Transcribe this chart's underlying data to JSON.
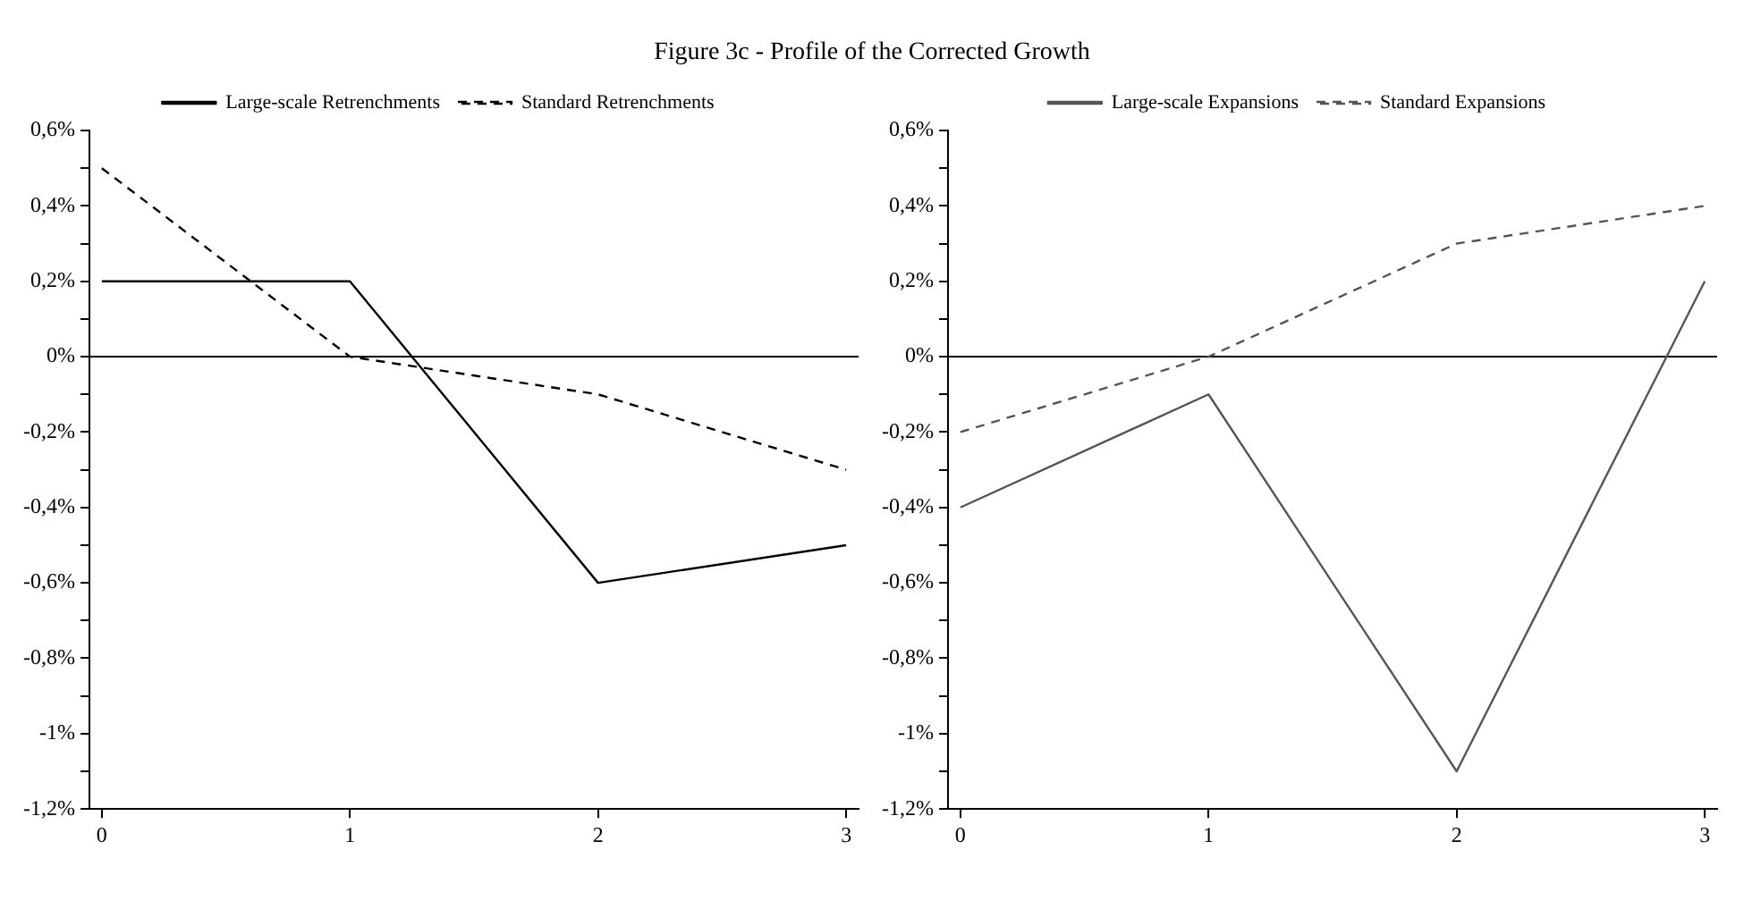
{
  "chart_data": [
    {
      "type": "line",
      "title": "Figure 3c - Profile of the Corrected Growth",
      "x": [
        0,
        1,
        2,
        3
      ],
      "xlim": [
        -0.05,
        3.05
      ],
      "xticks": [
        0,
        1,
        2,
        3
      ],
      "ylim": [
        -1.2,
        0.6
      ],
      "yticks": [
        {
          "value": -1.2,
          "label": "-1,2%"
        },
        {
          "value": -1.1,
          "label": null
        },
        {
          "value": -1,
          "label": "-1%"
        },
        {
          "value": -0.9,
          "label": null
        },
        {
          "value": -0.8,
          "label": "-0,8%"
        },
        {
          "value": -0.7,
          "label": null
        },
        {
          "value": -0.6,
          "label": "-0,6%"
        },
        {
          "value": -0.5,
          "label": null
        },
        {
          "value": -0.4,
          "label": "-0,4%"
        },
        {
          "value": -0.3,
          "label": null
        },
        {
          "value": -0.2,
          "label": "-0,2%"
        },
        {
          "value": -0.1,
          "label": null
        },
        {
          "value": 0,
          "label": "0%"
        },
        {
          "value": 0.1,
          "label": null
        },
        {
          "value": 0.2,
          "label": "0,2%"
        },
        {
          "value": 0.3,
          "label": null
        },
        {
          "value": 0.4,
          "label": "0,4%"
        },
        {
          "value": 0.5,
          "label": null
        },
        {
          "value": 0.6,
          "label": "0,6%"
        }
      ],
      "series": [
        {
          "name": "Large-scale Retrenchments",
          "color": "#000000",
          "line_style": "solid",
          "values": [
            0.2,
            0.2,
            -0.6,
            -0.5
          ]
        },
        {
          "name": "Standard Retrenchments",
          "color": "#000000",
          "line_style": "dashed",
          "values": [
            0.5,
            0,
            -0.1,
            -0.3
          ]
        }
      ],
      "ref_lines": [
        {
          "axis": "y",
          "value": 0,
          "color": "#000000"
        }
      ],
      "grid": false,
      "legend": "top",
      "marker": "none"
    },
    {
      "type": "line",
      "x": [
        0,
        1,
        2,
        3
      ],
      "xlim": [
        -0.05,
        3.05
      ],
      "xticks": [
        0,
        1,
        2,
        3
      ],
      "ylim": [
        -1.2,
        0.6
      ],
      "yticks": [
        {
          "value": -1.2,
          "label": "-1,2%"
        },
        {
          "value": -1.1,
          "label": null
        },
        {
          "value": -1,
          "label": "-1%"
        },
        {
          "value": -0.9,
          "label": null
        },
        {
          "value": -0.8,
          "label": "-0,8%"
        },
        {
          "value": -0.7,
          "label": null
        },
        {
          "value": -0.6,
          "label": "-0,6%"
        },
        {
          "value": -0.5,
          "label": null
        },
        {
          "value": -0.4,
          "label": "-0,4%"
        },
        {
          "value": -0.3,
          "label": null
        },
        {
          "value": -0.2,
          "label": "-0,2%"
        },
        {
          "value": -0.1,
          "label": null
        },
        {
          "value": 0,
          "label": "0%"
        },
        {
          "value": 0.1,
          "label": null
        },
        {
          "value": 0.2,
          "label": "0,2%"
        },
        {
          "value": 0.3,
          "label": null
        },
        {
          "value": 0.4,
          "label": "0,4%"
        },
        {
          "value": 0.5,
          "label": null
        },
        {
          "value": 0.6,
          "label": "0,6%"
        }
      ],
      "series": [
        {
          "name": "Large-scale Expansions",
          "color": "#555555",
          "line_style": "solid",
          "values": [
            -0.4,
            -0.1,
            -1.1,
            0.2
          ]
        },
        {
          "name": "Standard Expansions",
          "color": "#555555",
          "line_style": "dashed",
          "values": [
            -0.2,
            0,
            0.3,
            0.4
          ]
        }
      ],
      "ref_lines": [
        {
          "axis": "y",
          "value": 0,
          "color": "#000000"
        }
      ],
      "grid": false,
      "legend": "top",
      "marker": "none"
    }
  ]
}
